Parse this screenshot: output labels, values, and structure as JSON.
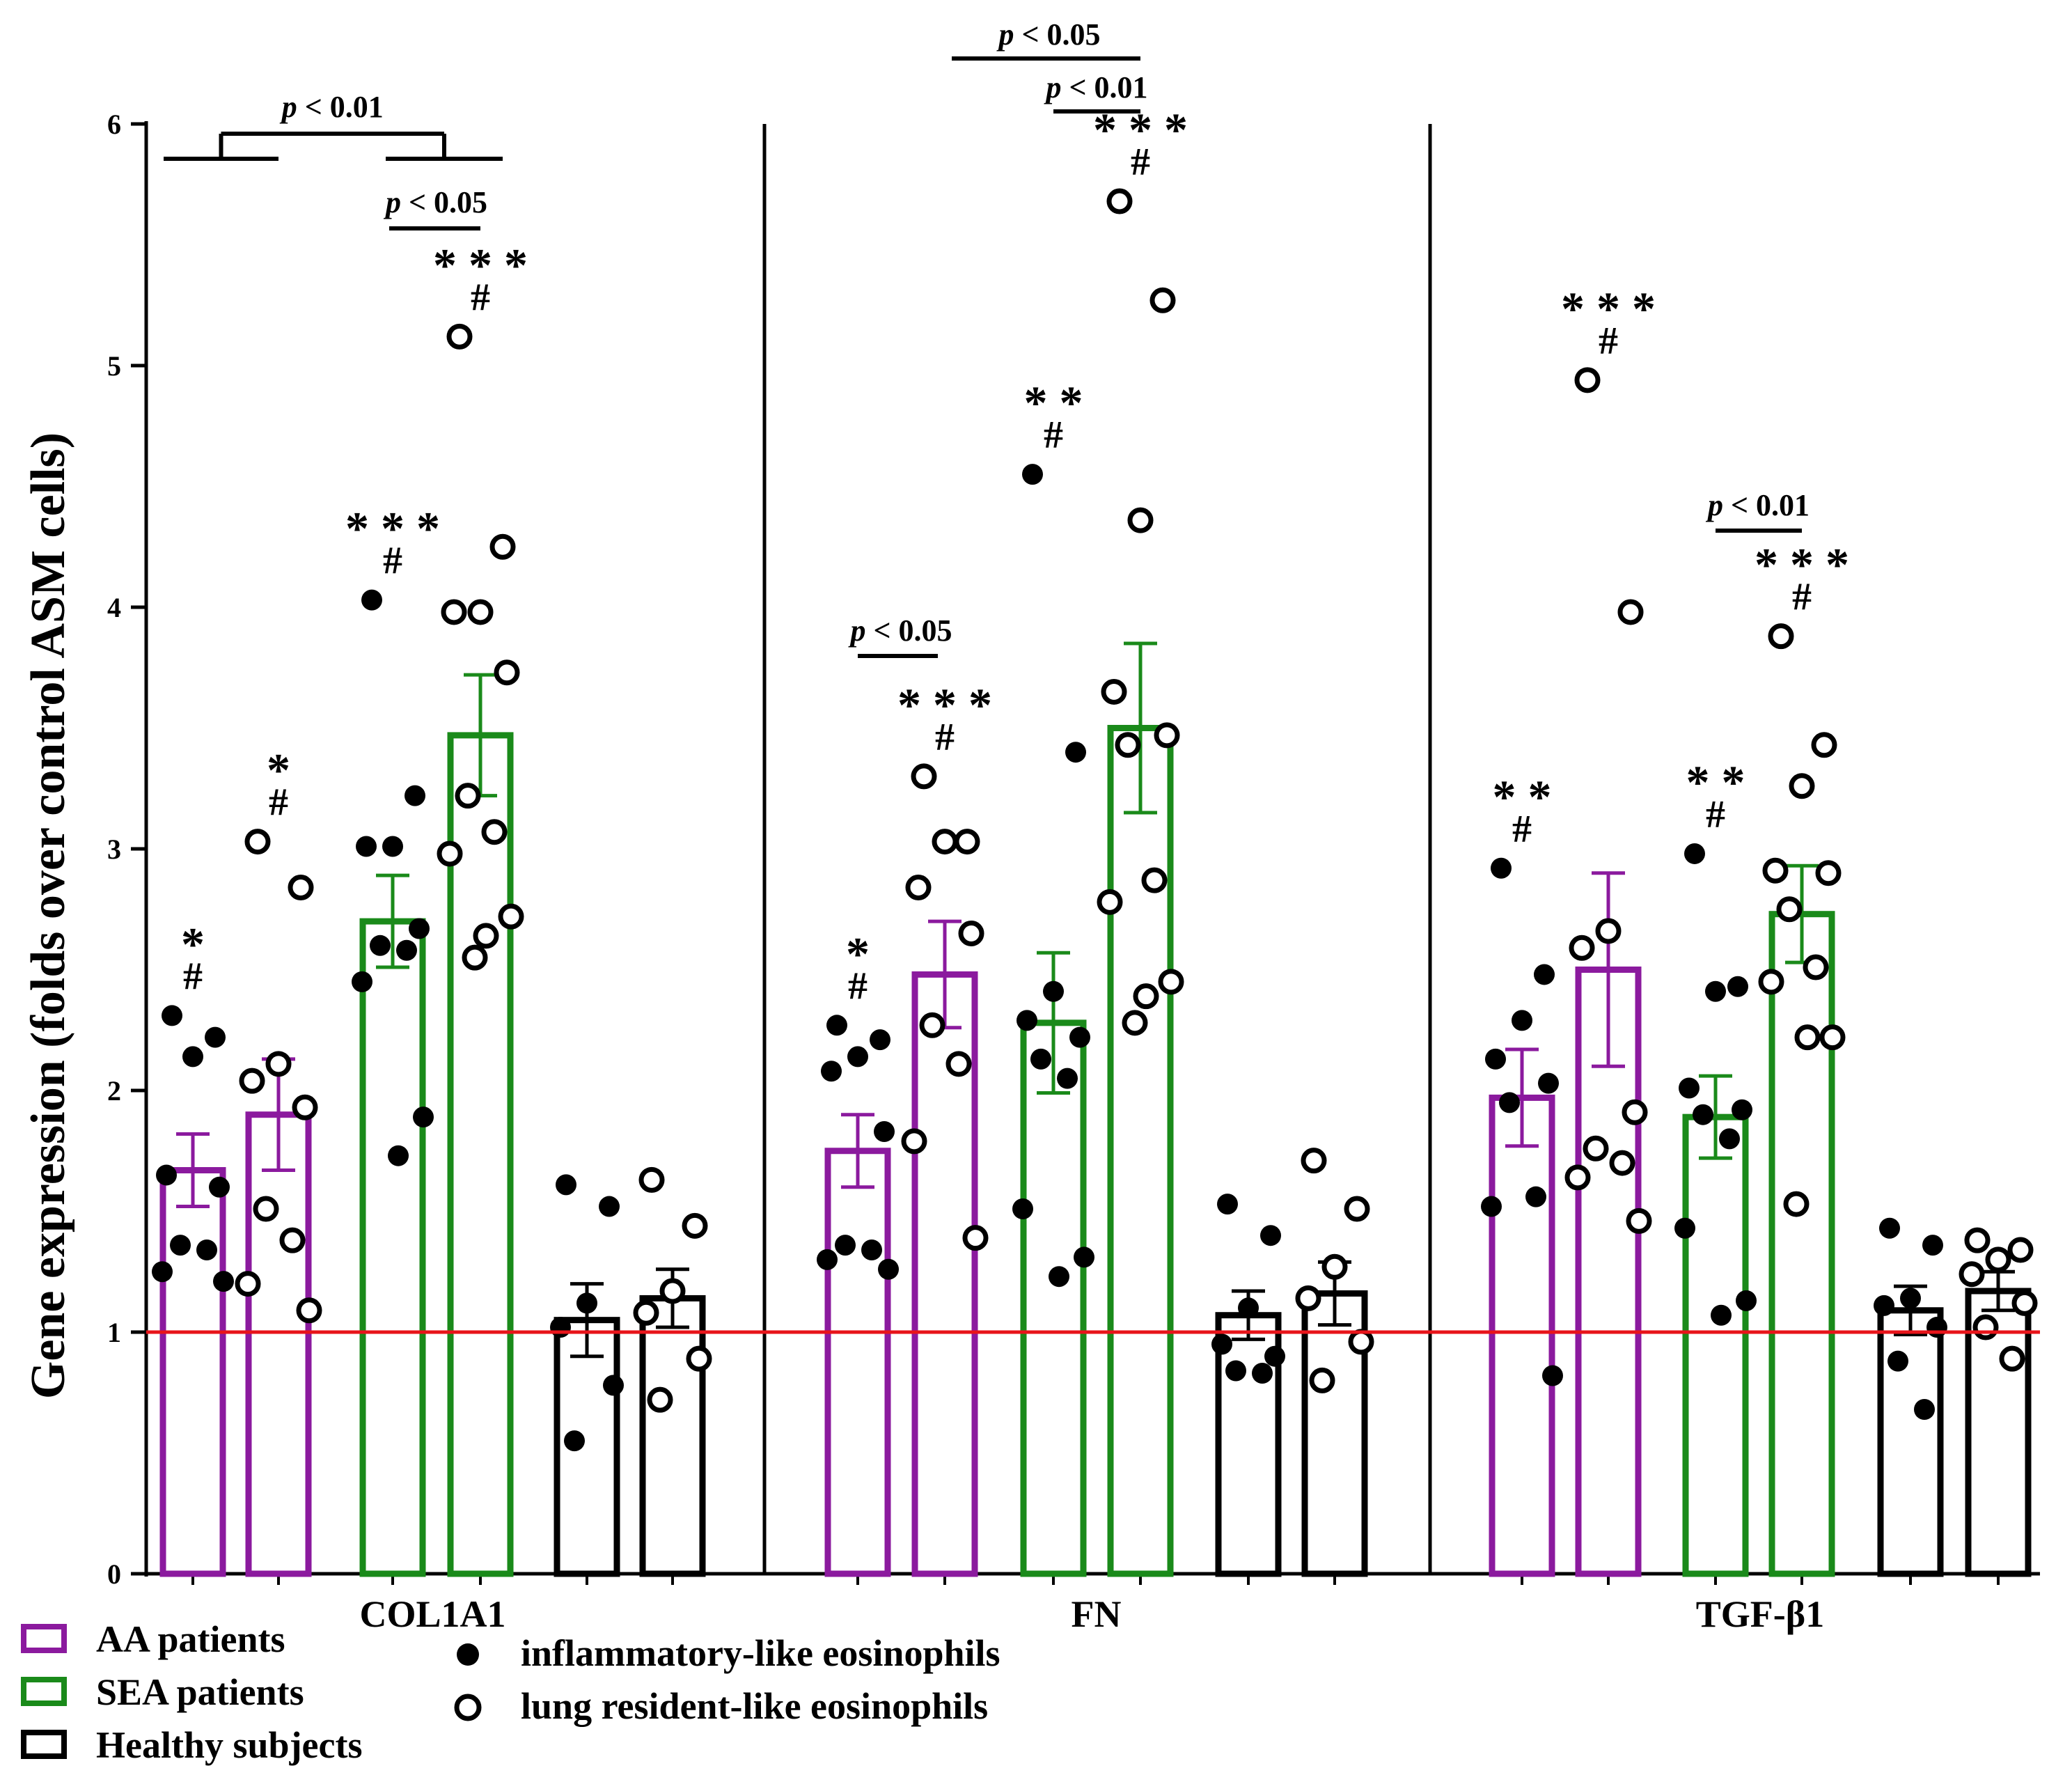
{
  "chart_data": {
    "type": "bar",
    "ylabel": "Gene expression (folds over control ASM cells)",
    "ylim": [
      0,
      6
    ],
    "yticks": [
      0,
      1,
      2,
      3,
      4,
      5,
      6
    ],
    "reference_line": 1,
    "colors": {
      "AA patients": "#8b1a9e",
      "SEA patients": "#1a8a1a",
      "Healthy subjects": "#000000",
      "reference": "#e8141a"
    },
    "legend": {
      "groups": [
        {
          "label": "AA patients",
          "color": "#8b1a9e"
        },
        {
          "label": "SEA patients",
          "color": "#1a8a1a"
        },
        {
          "label": "Healthy subjects",
          "color": "#000000"
        }
      ],
      "markers": [
        {
          "label": "inflammatory-like eosinophils",
          "style": "filled"
        },
        {
          "label": "lung resident-like eosinophils",
          "style": "open"
        }
      ]
    },
    "panels": [
      {
        "label": "COL1A1",
        "bars": [
          {
            "group": "AA patients",
            "marker": "filled",
            "mean": 1.67,
            "sem": 0.15,
            "points": [
              2.31,
              2.22,
              2.14,
              1.65,
              1.6,
              1.36,
              1.34,
              1.25,
              1.21
            ],
            "stars": "*",
            "hash": "#"
          },
          {
            "group": "AA patients",
            "marker": "open",
            "mean": 1.9,
            "sem": 0.23,
            "points": [
              3.03,
              2.84,
              2.11,
              2.04,
              1.93,
              1.51,
              1.38,
              1.2,
              1.09
            ],
            "stars": "*",
            "hash": "#"
          },
          {
            "group": "SEA patients",
            "marker": "filled",
            "mean": 2.7,
            "sem": 0.19,
            "points": [
              4.03,
              3.22,
              3.01,
              3.01,
              2.67,
              2.6,
              2.58,
              2.45,
              1.89,
              1.73
            ],
            "stars": "***",
            "hash": "#"
          },
          {
            "group": "SEA patients",
            "marker": "open",
            "mean": 3.47,
            "sem": 0.25,
            "points": [
              5.12,
              4.25,
              3.98,
              3.98,
              3.73,
              3.22,
              3.07,
              2.98,
              2.72,
              2.64,
              2.55
            ],
            "stars": "***",
            "hash": "#"
          },
          {
            "group": "Healthy subjects",
            "marker": "filled",
            "mean": 1.05,
            "sem": 0.15,
            "points": [
              1.61,
              1.52,
              1.12,
              1.02,
              0.78,
              0.55
            ],
            "stars": "",
            "hash": ""
          },
          {
            "group": "Healthy subjects",
            "marker": "open",
            "mean": 1.14,
            "sem": 0.12,
            "points": [
              1.63,
              1.44,
              1.17,
              1.08,
              0.89,
              0.72
            ],
            "stars": "",
            "hash": ""
          }
        ],
        "comparisons": [
          {
            "text": "p < 0.01",
            "from": 0,
            "to": 1,
            "vs_from": 2,
            "vs_to": 3,
            "kind": "group"
          },
          {
            "text": "p < 0.05",
            "from": 2,
            "to": 3,
            "kind": "pair"
          }
        ]
      },
      {
        "label": "FN",
        "bars": [
          {
            "group": "AA patients",
            "marker": "filled",
            "mean": 1.75,
            "sem": 0.15,
            "points": [
              2.27,
              2.21,
              2.14,
              2.08,
              1.83,
              1.36,
              1.34,
              1.3,
              1.26
            ],
            "stars": "*",
            "hash": "#"
          },
          {
            "group": "AA patients",
            "marker": "open",
            "mean": 2.48,
            "sem": 0.22,
            "points": [
              3.3,
              3.03,
              3.03,
              2.84,
              2.65,
              2.27,
              2.11,
              1.79,
              1.39
            ],
            "stars": "***",
            "hash": "#"
          },
          {
            "group": "SEA patients",
            "marker": "filled",
            "mean": 2.28,
            "sem": 0.29,
            "points": [
              4.55,
              3.4,
              2.41,
              2.29,
              2.22,
              2.13,
              2.05,
              1.51,
              1.31,
              1.23
            ],
            "stars": "**",
            "hash": "#"
          },
          {
            "group": "SEA patients",
            "marker": "open",
            "mean": 3.5,
            "sem": 0.35,
            "points": [
              5.68,
              5.27,
              4.36,
              3.65,
              3.47,
              3.43,
              2.87,
              2.78,
              2.45,
              2.39,
              2.28
            ],
            "stars": "***",
            "hash": "#"
          },
          {
            "group": "Healthy subjects",
            "marker": "filled",
            "mean": 1.07,
            "sem": 0.1,
            "points": [
              1.53,
              1.4,
              1.1,
              0.95,
              0.9,
              0.84,
              0.83
            ],
            "stars": "",
            "hash": ""
          },
          {
            "group": "Healthy subjects",
            "marker": "open",
            "mean": 1.16,
            "sem": 0.13,
            "points": [
              1.71,
              1.51,
              1.27,
              1.14,
              0.96,
              0.8
            ],
            "stars": "",
            "hash": ""
          }
        ],
        "comparisons": [
          {
            "text": "p < 0.05",
            "from": 0,
            "to": 1,
            "kind": "pair"
          },
          {
            "text": "p < 0.05",
            "from": 1,
            "to": 3,
            "kind": "pair"
          },
          {
            "text": "p < 0.01",
            "from": 2,
            "to": 3,
            "kind": "pair"
          }
        ]
      },
      {
        "label": "TGF-β1",
        "bars": [
          {
            "group": "AA patients",
            "marker": "filled",
            "mean": 1.97,
            "sem": 0.2,
            "points": [
              2.92,
              2.48,
              2.29,
              2.13,
              2.03,
              1.95,
              1.56,
              1.52,
              0.82
            ],
            "stars": "**",
            "hash": "#"
          },
          {
            "group": "AA patients",
            "marker": "open",
            "mean": 2.5,
            "sem": 0.4,
            "points": [
              4.94,
              3.98,
              2.66,
              2.59,
              1.91,
              1.76,
              1.7,
              1.64,
              1.46
            ],
            "stars": "***",
            "hash": "#"
          },
          {
            "group": "SEA patients",
            "marker": "filled",
            "mean": 1.89,
            "sem": 0.17,
            "points": [
              2.98,
              2.43,
              2.41,
              2.01,
              1.92,
              1.9,
              1.8,
              1.43,
              1.13,
              1.07
            ],
            "stars": "**",
            "hash": "#"
          },
          {
            "group": "SEA patients",
            "marker": "open",
            "mean": 2.73,
            "sem": 0.2,
            "points": [
              3.88,
              3.43,
              3.26,
              2.91,
              2.9,
              2.75,
              2.51,
              2.45,
              2.22,
              2.22,
              1.53
            ],
            "stars": "***",
            "hash": "#"
          },
          {
            "group": "Healthy subjects",
            "marker": "filled",
            "mean": 1.09,
            "sem": 0.1,
            "points": [
              1.43,
              1.36,
              1.14,
              1.11,
              1.02,
              0.88,
              0.68
            ],
            "stars": "",
            "hash": ""
          },
          {
            "group": "Healthy subjects",
            "marker": "open",
            "mean": 1.17,
            "sem": 0.08,
            "points": [
              1.38,
              1.34,
              1.3,
              1.24,
              1.12,
              1.02,
              0.89
            ],
            "stars": "",
            "hash": ""
          }
        ],
        "comparisons": [
          {
            "text": "p < 0.01",
            "from": 2,
            "to": 3,
            "kind": "pair"
          }
        ]
      }
    ]
  }
}
